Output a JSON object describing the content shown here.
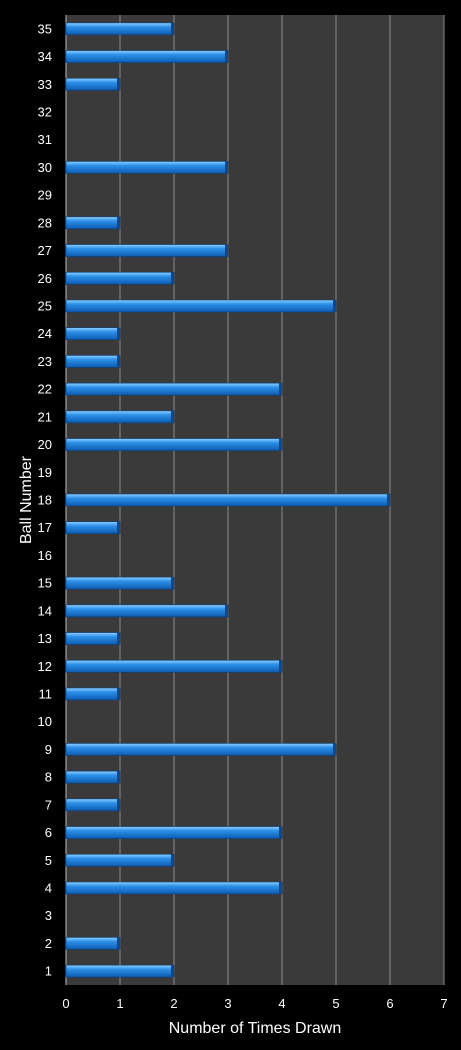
{
  "chart_data": {
    "type": "bar",
    "orientation": "horizontal",
    "title": "",
    "xlabel": "Number of Times Drawn",
    "ylabel": "Ball Number",
    "xlim": [
      0,
      7
    ],
    "xticks": [
      "0",
      "1",
      "2",
      "3",
      "4",
      "5",
      "6",
      "7"
    ],
    "grid": "vertical",
    "legend": "none",
    "categories": [
      "1",
      "2",
      "3",
      "4",
      "5",
      "6",
      "7",
      "8",
      "9",
      "10",
      "11",
      "12",
      "13",
      "14",
      "15",
      "16",
      "17",
      "18",
      "19",
      "20",
      "21",
      "22",
      "23",
      "24",
      "25",
      "26",
      "27",
      "28",
      "29",
      "30",
      "31",
      "32",
      "33",
      "34",
      "35"
    ],
    "values": [
      2,
      1,
      0,
      4,
      2,
      4,
      1,
      1,
      5,
      0,
      1,
      4,
      1,
      3,
      2,
      0,
      1,
      6,
      0,
      4,
      2,
      4,
      1,
      1,
      5,
      2,
      3,
      1,
      0,
      3,
      0,
      0,
      1,
      3,
      2
    ],
    "colors": {
      "background": "#000000",
      "plot_area": "#3a3a3a",
      "gridline": "#8c8c8c",
      "bar": "#1f7fd8",
      "bar_highlight": "#7cc4ff",
      "bar_shadow": "#0b4f9a",
      "text": "#ffffff"
    }
  }
}
